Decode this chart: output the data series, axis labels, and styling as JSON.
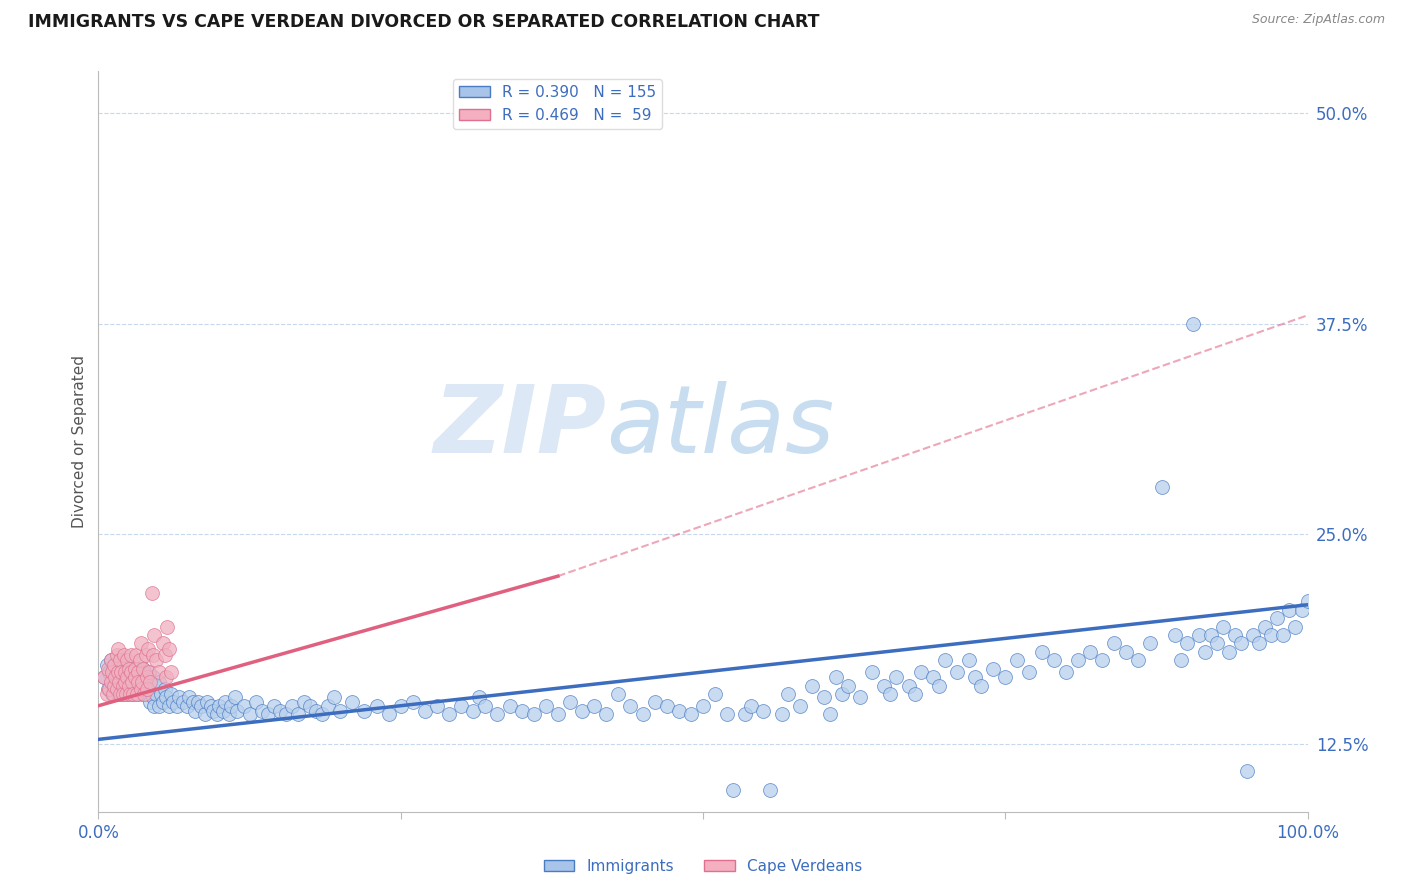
{
  "title": "IMMIGRANTS VS CAPE VERDEAN DIVORCED OR SEPARATED CORRELATION CHART",
  "source": "Source: ZipAtlas.com",
  "ylabel": "Divorced or Separated",
  "xlim": [
    0.0,
    1.0
  ],
  "ylim": [
    0.085,
    0.525
  ],
  "yticks": [
    0.125,
    0.25,
    0.375,
    0.5
  ],
  "ytick_labels": [
    "12.5%",
    "25.0%",
    "37.5%",
    "50.0%"
  ],
  "blue_line": {
    "x0": 0.0,
    "y0": 0.128,
    "x1": 1.0,
    "y1": 0.208
  },
  "pink_solid_line": {
    "x0": 0.0,
    "y0": 0.148,
    "x1": 0.38,
    "y1": 0.225
  },
  "pink_dash_line": {
    "x0": 0.38,
    "y0": 0.225,
    "x1": 1.0,
    "y1": 0.38
  },
  "blue_scatter": [
    [
      0.005,
      0.165
    ],
    [
      0.007,
      0.172
    ],
    [
      0.008,
      0.158
    ],
    [
      0.009,
      0.168
    ],
    [
      0.01,
      0.175
    ],
    [
      0.01,
      0.162
    ],
    [
      0.011,
      0.155
    ],
    [
      0.012,
      0.17
    ],
    [
      0.012,
      0.16
    ],
    [
      0.013,
      0.165
    ],
    [
      0.013,
      0.158
    ],
    [
      0.014,
      0.172
    ],
    [
      0.015,
      0.16
    ],
    [
      0.015,
      0.168
    ],
    [
      0.016,
      0.155
    ],
    [
      0.016,
      0.165
    ],
    [
      0.017,
      0.162
    ],
    [
      0.017,
      0.17
    ],
    [
      0.018,
      0.158
    ],
    [
      0.018,
      0.175
    ],
    [
      0.019,
      0.16
    ],
    [
      0.019,
      0.163
    ],
    [
      0.02,
      0.165
    ],
    [
      0.02,
      0.155
    ],
    [
      0.021,
      0.168
    ],
    [
      0.021,
      0.162
    ],
    [
      0.022,
      0.17
    ],
    [
      0.022,
      0.158
    ],
    [
      0.023,
      0.16
    ],
    [
      0.023,
      0.165
    ],
    [
      0.024,
      0.155
    ],
    [
      0.024,
      0.172
    ],
    [
      0.025,
      0.163
    ],
    [
      0.025,
      0.158
    ],
    [
      0.026,
      0.168
    ],
    [
      0.026,
      0.16
    ],
    [
      0.027,
      0.165
    ],
    [
      0.028,
      0.155
    ],
    [
      0.028,
      0.162
    ],
    [
      0.029,
      0.17
    ],
    [
      0.03,
      0.158
    ],
    [
      0.03,
      0.165
    ],
    [
      0.031,
      0.16
    ],
    [
      0.032,
      0.155
    ],
    [
      0.032,
      0.168
    ],
    [
      0.033,
      0.163
    ],
    [
      0.033,
      0.17
    ],
    [
      0.034,
      0.158
    ],
    [
      0.035,
      0.165
    ],
    [
      0.035,
      0.16
    ],
    [
      0.036,
      0.155
    ],
    [
      0.036,
      0.168
    ],
    [
      0.037,
      0.163
    ],
    [
      0.037,
      0.17
    ],
    [
      0.038,
      0.158
    ],
    [
      0.038,
      0.165
    ],
    [
      0.04,
      0.16
    ],
    [
      0.04,
      0.155
    ],
    [
      0.041,
      0.168
    ],
    [
      0.042,
      0.163
    ],
    [
      0.043,
      0.15
    ],
    [
      0.044,
      0.158
    ],
    [
      0.045,
      0.153
    ],
    [
      0.045,
      0.165
    ],
    [
      0.046,
      0.148
    ],
    [
      0.047,
      0.16
    ],
    [
      0.048,
      0.155
    ],
    [
      0.05,
      0.148
    ],
    [
      0.05,
      0.162
    ],
    [
      0.052,
      0.155
    ],
    [
      0.053,
      0.15
    ],
    [
      0.055,
      0.158
    ],
    [
      0.056,
      0.153
    ],
    [
      0.058,
      0.148
    ],
    [
      0.06,
      0.155
    ],
    [
      0.062,
      0.15
    ],
    [
      0.065,
      0.148
    ],
    [
      0.067,
      0.153
    ],
    [
      0.07,
      0.15
    ],
    [
      0.073,
      0.148
    ],
    [
      0.075,
      0.153
    ],
    [
      0.078,
      0.15
    ],
    [
      0.08,
      0.145
    ],
    [
      0.082,
      0.15
    ],
    [
      0.085,
      0.148
    ],
    [
      0.088,
      0.143
    ],
    [
      0.09,
      0.15
    ],
    [
      0.093,
      0.148
    ],
    [
      0.095,
      0.145
    ],
    [
      0.098,
      0.143
    ],
    [
      0.1,
      0.148
    ],
    [
      0.103,
      0.145
    ],
    [
      0.105,
      0.15
    ],
    [
      0.108,
      0.143
    ],
    [
      0.11,
      0.148
    ],
    [
      0.113,
      0.153
    ],
    [
      0.115,
      0.145
    ],
    [
      0.12,
      0.148
    ],
    [
      0.125,
      0.143
    ],
    [
      0.13,
      0.15
    ],
    [
      0.135,
      0.145
    ],
    [
      0.14,
      0.143
    ],
    [
      0.145,
      0.148
    ],
    [
      0.15,
      0.145
    ],
    [
      0.155,
      0.143
    ],
    [
      0.16,
      0.148
    ],
    [
      0.165,
      0.143
    ],
    [
      0.17,
      0.15
    ],
    [
      0.175,
      0.148
    ],
    [
      0.18,
      0.145
    ],
    [
      0.185,
      0.143
    ],
    [
      0.19,
      0.148
    ],
    [
      0.195,
      0.153
    ],
    [
      0.2,
      0.145
    ],
    [
      0.21,
      0.15
    ],
    [
      0.22,
      0.145
    ],
    [
      0.23,
      0.148
    ],
    [
      0.24,
      0.143
    ],
    [
      0.25,
      0.148
    ],
    [
      0.26,
      0.15
    ],
    [
      0.27,
      0.145
    ],
    [
      0.28,
      0.148
    ],
    [
      0.29,
      0.143
    ],
    [
      0.3,
      0.148
    ],
    [
      0.31,
      0.145
    ],
    [
      0.315,
      0.153
    ],
    [
      0.32,
      0.148
    ],
    [
      0.33,
      0.143
    ],
    [
      0.34,
      0.148
    ],
    [
      0.35,
      0.145
    ],
    [
      0.36,
      0.143
    ],
    [
      0.37,
      0.148
    ],
    [
      0.38,
      0.143
    ],
    [
      0.39,
      0.15
    ],
    [
      0.4,
      0.145
    ],
    [
      0.41,
      0.148
    ],
    [
      0.42,
      0.143
    ],
    [
      0.43,
      0.155
    ],
    [
      0.44,
      0.148
    ],
    [
      0.45,
      0.143
    ],
    [
      0.46,
      0.15
    ],
    [
      0.47,
      0.148
    ],
    [
      0.48,
      0.145
    ],
    [
      0.49,
      0.143
    ],
    [
      0.5,
      0.148
    ],
    [
      0.51,
      0.155
    ],
    [
      0.52,
      0.143
    ],
    [
      0.525,
      0.098
    ],
    [
      0.535,
      0.143
    ],
    [
      0.54,
      0.148
    ],
    [
      0.55,
      0.145
    ],
    [
      0.555,
      0.098
    ],
    [
      0.565,
      0.143
    ],
    [
      0.57,
      0.155
    ],
    [
      0.58,
      0.148
    ],
    [
      0.59,
      0.16
    ],
    [
      0.6,
      0.153
    ],
    [
      0.605,
      0.143
    ],
    [
      0.61,
      0.165
    ],
    [
      0.615,
      0.155
    ],
    [
      0.62,
      0.16
    ],
    [
      0.63,
      0.153
    ],
    [
      0.64,
      0.168
    ],
    [
      0.65,
      0.16
    ],
    [
      0.655,
      0.155
    ],
    [
      0.66,
      0.165
    ],
    [
      0.67,
      0.16
    ],
    [
      0.675,
      0.155
    ],
    [
      0.68,
      0.168
    ],
    [
      0.69,
      0.165
    ],
    [
      0.695,
      0.16
    ],
    [
      0.7,
      0.175
    ],
    [
      0.71,
      0.168
    ],
    [
      0.72,
      0.175
    ],
    [
      0.725,
      0.165
    ],
    [
      0.73,
      0.16
    ],
    [
      0.74,
      0.17
    ],
    [
      0.75,
      0.165
    ],
    [
      0.76,
      0.175
    ],
    [
      0.77,
      0.168
    ],
    [
      0.78,
      0.18
    ],
    [
      0.79,
      0.175
    ],
    [
      0.8,
      0.168
    ],
    [
      0.81,
      0.175
    ],
    [
      0.82,
      0.18
    ],
    [
      0.83,
      0.175
    ],
    [
      0.84,
      0.185
    ],
    [
      0.85,
      0.18
    ],
    [
      0.86,
      0.175
    ],
    [
      0.87,
      0.185
    ],
    [
      0.88,
      0.278
    ],
    [
      0.89,
      0.19
    ],
    [
      0.895,
      0.175
    ],
    [
      0.9,
      0.185
    ],
    [
      0.905,
      0.375
    ],
    [
      0.91,
      0.19
    ],
    [
      0.915,
      0.18
    ],
    [
      0.92,
      0.19
    ],
    [
      0.925,
      0.185
    ],
    [
      0.93,
      0.195
    ],
    [
      0.935,
      0.18
    ],
    [
      0.94,
      0.19
    ],
    [
      0.945,
      0.185
    ],
    [
      0.95,
      0.109
    ],
    [
      0.955,
      0.19
    ],
    [
      0.96,
      0.185
    ],
    [
      0.965,
      0.195
    ],
    [
      0.97,
      0.19
    ],
    [
      0.975,
      0.2
    ],
    [
      0.98,
      0.19
    ],
    [
      0.985,
      0.205
    ],
    [
      0.99,
      0.195
    ],
    [
      0.995,
      0.205
    ],
    [
      1.0,
      0.21
    ]
  ],
  "pink_scatter": [
    [
      0.005,
      0.165
    ],
    [
      0.007,
      0.155
    ],
    [
      0.008,
      0.17
    ],
    [
      0.009,
      0.158
    ],
    [
      0.01,
      0.175
    ],
    [
      0.01,
      0.162
    ],
    [
      0.011,
      0.168
    ],
    [
      0.012,
      0.155
    ],
    [
      0.013,
      0.172
    ],
    [
      0.013,
      0.16
    ],
    [
      0.014,
      0.165
    ],
    [
      0.015,
      0.178
    ],
    [
      0.015,
      0.158
    ],
    [
      0.016,
      0.168
    ],
    [
      0.016,
      0.182
    ],
    [
      0.017,
      0.162
    ],
    [
      0.018,
      0.155
    ],
    [
      0.018,
      0.175
    ],
    [
      0.019,
      0.168
    ],
    [
      0.02,
      0.16
    ],
    [
      0.02,
      0.155
    ],
    [
      0.021,
      0.178
    ],
    [
      0.022,
      0.168
    ],
    [
      0.022,
      0.162
    ],
    [
      0.023,
      0.155
    ],
    [
      0.024,
      0.175
    ],
    [
      0.024,
      0.165
    ],
    [
      0.025,
      0.16
    ],
    [
      0.025,
      0.17
    ],
    [
      0.026,
      0.155
    ],
    [
      0.027,
      0.168
    ],
    [
      0.027,
      0.178
    ],
    [
      0.028,
      0.162
    ],
    [
      0.029,
      0.155
    ],
    [
      0.03,
      0.17
    ],
    [
      0.03,
      0.165
    ],
    [
      0.031,
      0.178
    ],
    [
      0.032,
      0.155
    ],
    [
      0.033,
      0.168
    ],
    [
      0.033,
      0.162
    ],
    [
      0.034,
      0.175
    ],
    [
      0.035,
      0.158
    ],
    [
      0.035,
      0.185
    ],
    [
      0.036,
      0.162
    ],
    [
      0.037,
      0.17
    ],
    [
      0.038,
      0.155
    ],
    [
      0.039,
      0.178
    ],
    [
      0.04,
      0.165
    ],
    [
      0.04,
      0.158
    ],
    [
      0.041,
      0.182
    ],
    [
      0.042,
      0.168
    ],
    [
      0.043,
      0.162
    ],
    [
      0.044,
      0.215
    ],
    [
      0.045,
      0.178
    ],
    [
      0.046,
      0.19
    ],
    [
      0.048,
      0.175
    ],
    [
      0.05,
      0.168
    ],
    [
      0.053,
      0.185
    ],
    [
      0.055,
      0.178
    ],
    [
      0.056,
      0.165
    ],
    [
      0.057,
      0.195
    ],
    [
      0.058,
      0.182
    ],
    [
      0.06,
      0.168
    ]
  ],
  "watermark_zip": "ZIP",
  "watermark_atlas": "atlas",
  "bg_color": "#ffffff",
  "grid_color": "#c8d8ec",
  "blue_color": "#3d6dbf",
  "pink_color": "#e06080",
  "scatter_blue_face": "#b8d0ec",
  "scatter_blue_edge": "#4a7cc4",
  "scatter_pink_face": "#f0b0c0",
  "scatter_pink_edge": "#e07090",
  "legend_blue_face": "#a8c4e8",
  "legend_pink_face": "#f4b0c0"
}
